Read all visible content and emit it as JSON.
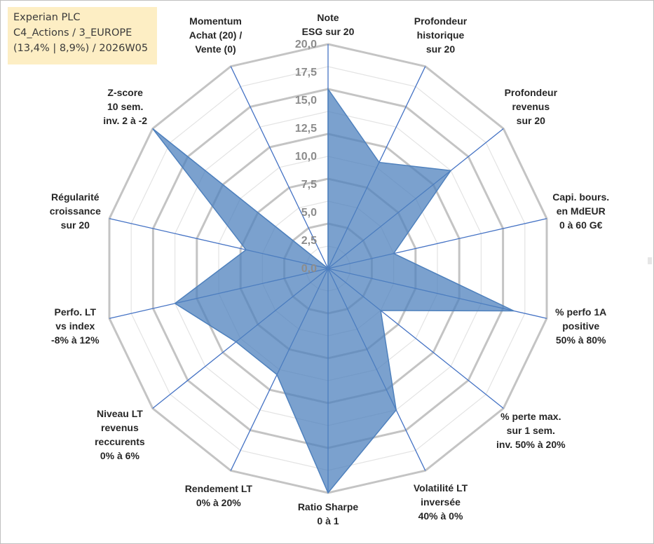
{
  "info_box": {
    "line1": "Experian PLC",
    "line2": "C4_Actions / 3_EUROPE",
    "line3": "(13,4% | 8,9%) / 2026W05"
  },
  "chart_data": {
    "type": "radar",
    "title": "",
    "rmax": 20,
    "rticks": [
      0,
      2.5,
      5,
      7.5,
      10,
      12.5,
      15,
      17.5,
      20
    ],
    "rtick_labels": [
      "0,0",
      "2,5",
      "5,0",
      "7,5",
      "10,0",
      "12,5",
      "15,0",
      "17,5",
      "20,0"
    ],
    "grid_rings": 10,
    "axes": [
      {
        "lines": [
          "Note",
          "ESG sur 20"
        ]
      },
      {
        "lines": [
          "Profondeur",
          "historique",
          "sur 20"
        ]
      },
      {
        "lines": [
          "Profondeur",
          "revenus",
          "sur 20"
        ]
      },
      {
        "lines": [
          "Capi. bours.",
          "en MdEUR",
          "0 à 60 G€"
        ]
      },
      {
        "lines": [
          "% perfo 1A",
          "positive",
          "50% à 80%"
        ]
      },
      {
        "lines": [
          "% perte max.",
          "sur 1 sem.",
          "inv. 50% à 20%"
        ]
      },
      {
        "lines": [
          "Volatilité LT",
          "inversée",
          "40% à 0%"
        ]
      },
      {
        "lines": [
          "Ratio Sharpe",
          "0 à 1"
        ]
      },
      {
        "lines": [
          "Rendement LT",
          "0% à 20%"
        ]
      },
      {
        "lines": [
          "Niveau LT",
          "revenus",
          "reccurents",
          "0% à 6%"
        ]
      },
      {
        "lines": [
          "Perfo. LT",
          "vs index",
          "-8% à 12%"
        ]
      },
      {
        "lines": [
          "Régularité",
          "croissance",
          "sur 20"
        ]
      },
      {
        "lines": [
          "Z-score",
          "10 sem.",
          "inv. 2 à -2"
        ]
      },
      {
        "lines": [
          "Momentum",
          "Achat (20) /",
          "Vente (0)"
        ]
      }
    ],
    "series": [
      {
        "name": "Experian PLC",
        "values": [
          16,
          10.5,
          14,
          6,
          17,
          6,
          14,
          20,
          10.5,
          10.5,
          14,
          7.5,
          20,
          0
        ]
      }
    ],
    "colors": {
      "fill": "#4f81bd",
      "stroke": "#4f81bd",
      "grid": "#c8c8c8",
      "spoke": "#4472c4"
    }
  }
}
